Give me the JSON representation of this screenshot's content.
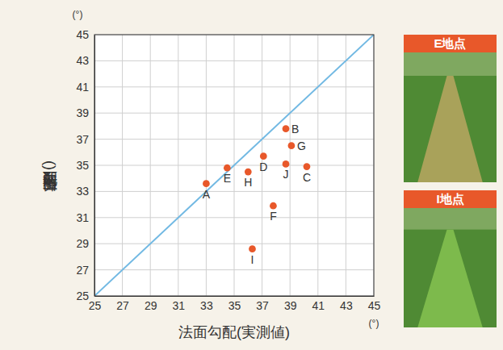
{
  "chart_data": {
    "type": "scatter",
    "x_label": "法面勾配(実測値)",
    "y_label": "法面勾配(算出値)",
    "x_unit": "(°)",
    "y_unit": "(°)",
    "labels": [
      "A",
      "B",
      "C",
      "D",
      "E",
      "F",
      "G",
      "H",
      "I",
      "J"
    ],
    "x": [
      33.0,
      38.7,
      40.2,
      37.1,
      34.5,
      37.8,
      39.1,
      36.0,
      36.3,
      38.7
    ],
    "values": [
      33.6,
      37.8,
      34.9,
      35.7,
      34.8,
      31.9,
      36.5,
      34.5,
      28.6,
      35.1
    ],
    "color": "#e8582a",
    "marker": "circle",
    "reference_line": {
      "x": [
        25,
        45
      ],
      "values": [
        25,
        45
      ],
      "color": "#72b9e3",
      "line_style": "solid"
    },
    "xlim": [
      25,
      45
    ],
    "ylim": [
      25,
      45
    ],
    "xticks": [
      25,
      27,
      29,
      31,
      33,
      35,
      37,
      39,
      41,
      43,
      45
    ],
    "yticks": [
      25,
      27,
      29,
      31,
      33,
      35,
      37,
      39,
      41,
      43,
      45
    ],
    "grid": true
  },
  "photos": [
    {
      "label": "E地点"
    },
    {
      "label": "I地点"
    }
  ]
}
